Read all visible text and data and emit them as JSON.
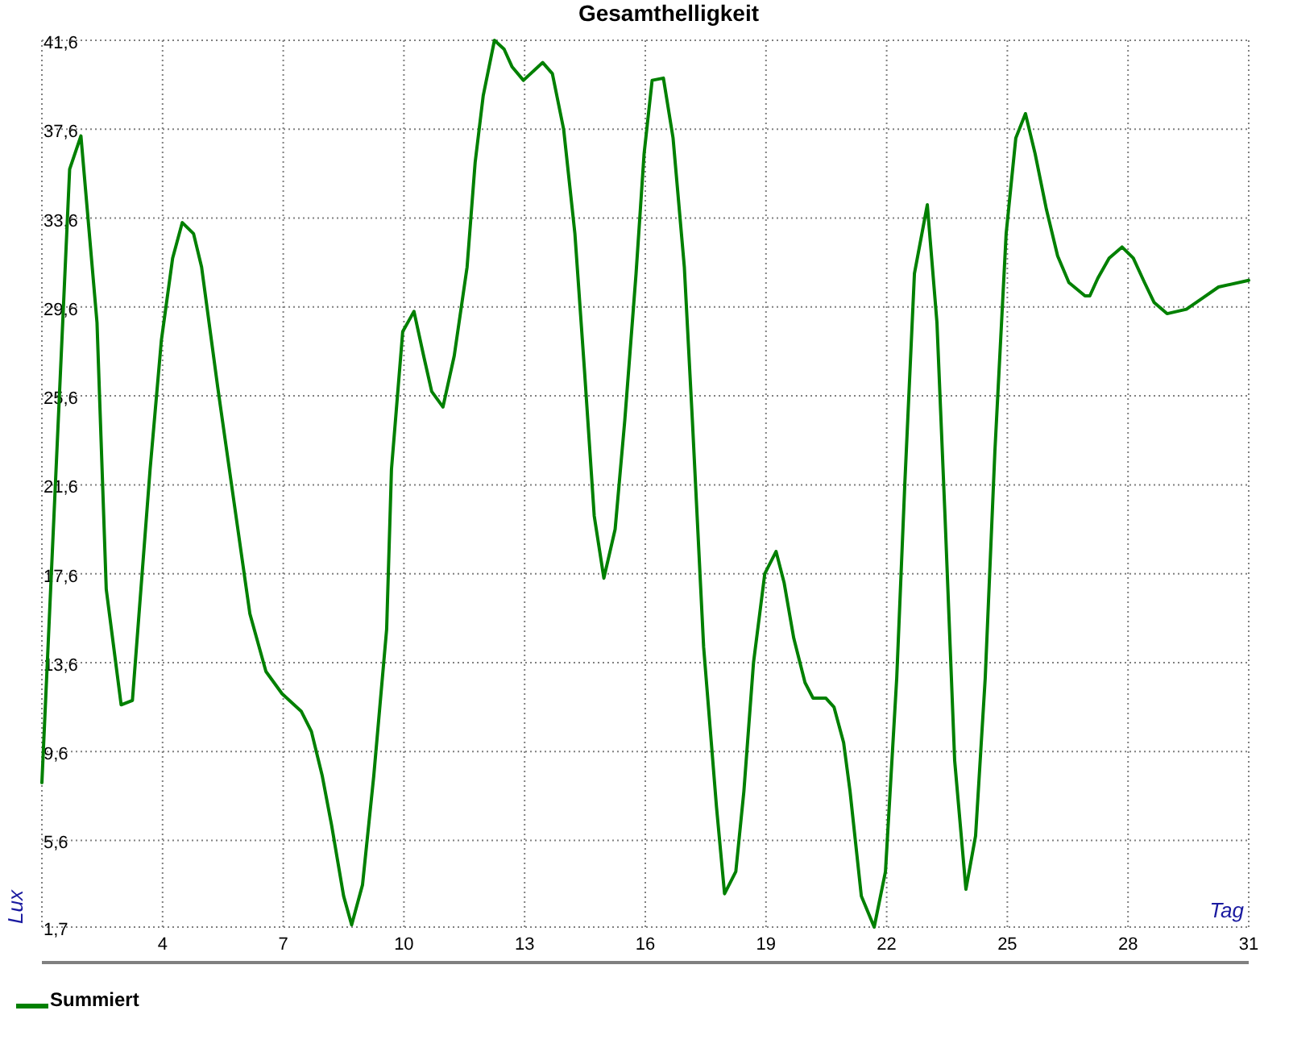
{
  "chart_data": {
    "type": "line",
    "title": "Gesamthelligkeit",
    "xlabel": "Tag",
    "ylabel": "Lux",
    "xlim": [
      1,
      31
    ],
    "xticks": [
      4,
      7,
      10,
      13,
      16,
      19,
      22,
      25,
      28,
      31
    ],
    "ylim": [
      1.7,
      41.6
    ],
    "yticks": [
      {
        "value": 1.7,
        "label": "1,7"
      },
      {
        "value": 5.6,
        "label": "5,6"
      },
      {
        "value": 9.6,
        "label": "9,6"
      },
      {
        "value": 13.6,
        "label": "13,6"
      },
      {
        "value": 17.6,
        "label": "17,6"
      },
      {
        "value": 21.6,
        "label": "21,6"
      },
      {
        "value": 25.6,
        "label": "25,6"
      },
      {
        "value": 29.6,
        "label": "29,6"
      },
      {
        "value": 33.6,
        "label": "33,6"
      },
      {
        "value": 37.6,
        "label": "37,6"
      },
      {
        "value": 41.6,
        "label": "41,6"
      }
    ],
    "grid": true,
    "legend": "bottom",
    "marker": "none",
    "line_style": "solid",
    "series": [
      {
        "name": "Summiert",
        "color": "#008000",
        "x": [
          1.0,
          1.69,
          1.97,
          2.37,
          2.6,
          2.97,
          3.25,
          3.69,
          3.97,
          4.25,
          4.49,
          4.77,
          4.97,
          5.37,
          5.77,
          6.17,
          6.57,
          6.97,
          7.45,
          7.7,
          7.97,
          8.2,
          8.5,
          8.7,
          8.97,
          9.25,
          9.57,
          9.69,
          9.97,
          10.25,
          10.49,
          10.69,
          10.97,
          11.25,
          11.57,
          11.77,
          11.97,
          12.25,
          12.49,
          12.69,
          12.97,
          13.45,
          13.69,
          13.97,
          14.25,
          14.49,
          14.73,
          14.97,
          15.25,
          15.49,
          15.77,
          15.97,
          16.17,
          16.45,
          16.69,
          16.97,
          17.17,
          17.45,
          17.77,
          17.97,
          18.25,
          18.45,
          18.69,
          18.97,
          19.25,
          19.45,
          19.69,
          19.97,
          20.17,
          20.49,
          20.69,
          20.93,
          21.09,
          21.37,
          21.69,
          21.97,
          22.25,
          22.45,
          22.69,
          23.01,
          23.25,
          23.45,
          23.69,
          23.97,
          24.21,
          24.45,
          24.69,
          24.97,
          25.21,
          25.45,
          25.69,
          25.97,
          26.25,
          26.53,
          26.93,
          27.05,
          27.25,
          27.53,
          27.85,
          28.13,
          28.41,
          28.65,
          28.97,
          29.45,
          29.85,
          30.25,
          31.0
        ],
        "values": [
          8.2,
          35.8,
          37.3,
          28.9,
          16.9,
          11.7,
          11.9,
          22.3,
          28.1,
          31.8,
          33.4,
          32.9,
          31.4,
          26.0,
          20.9,
          15.8,
          13.2,
          12.2,
          11.4,
          10.5,
          8.5,
          6.3,
          3.1,
          1.8,
          3.6,
          8.5,
          15.1,
          22.3,
          28.5,
          29.4,
          27.4,
          25.8,
          25.1,
          27.4,
          31.4,
          36.1,
          39.1,
          41.6,
          41.2,
          40.4,
          39.8,
          40.6,
          40.1,
          37.6,
          32.9,
          26.7,
          20.2,
          17.4,
          19.6,
          24.5,
          31.1,
          36.5,
          39.8,
          39.9,
          37.2,
          31.4,
          24.5,
          14.3,
          7.1,
          3.2,
          4.2,
          7.8,
          13.6,
          17.6,
          18.6,
          17.2,
          14.7,
          12.7,
          12.0,
          12.0,
          11.6,
          10.0,
          7.8,
          3.1,
          1.7,
          4.2,
          12.9,
          21.6,
          31.1,
          34.2,
          28.9,
          20.2,
          9.2,
          3.4,
          5.8,
          12.9,
          23.1,
          32.9,
          37.2,
          38.3,
          36.5,
          34.0,
          31.9,
          30.7,
          30.1,
          30.1,
          30.9,
          31.8,
          32.3,
          31.8,
          30.7,
          29.8,
          29.3,
          29.5,
          30.0,
          30.5,
          30.8
        ]
      }
    ]
  }
}
